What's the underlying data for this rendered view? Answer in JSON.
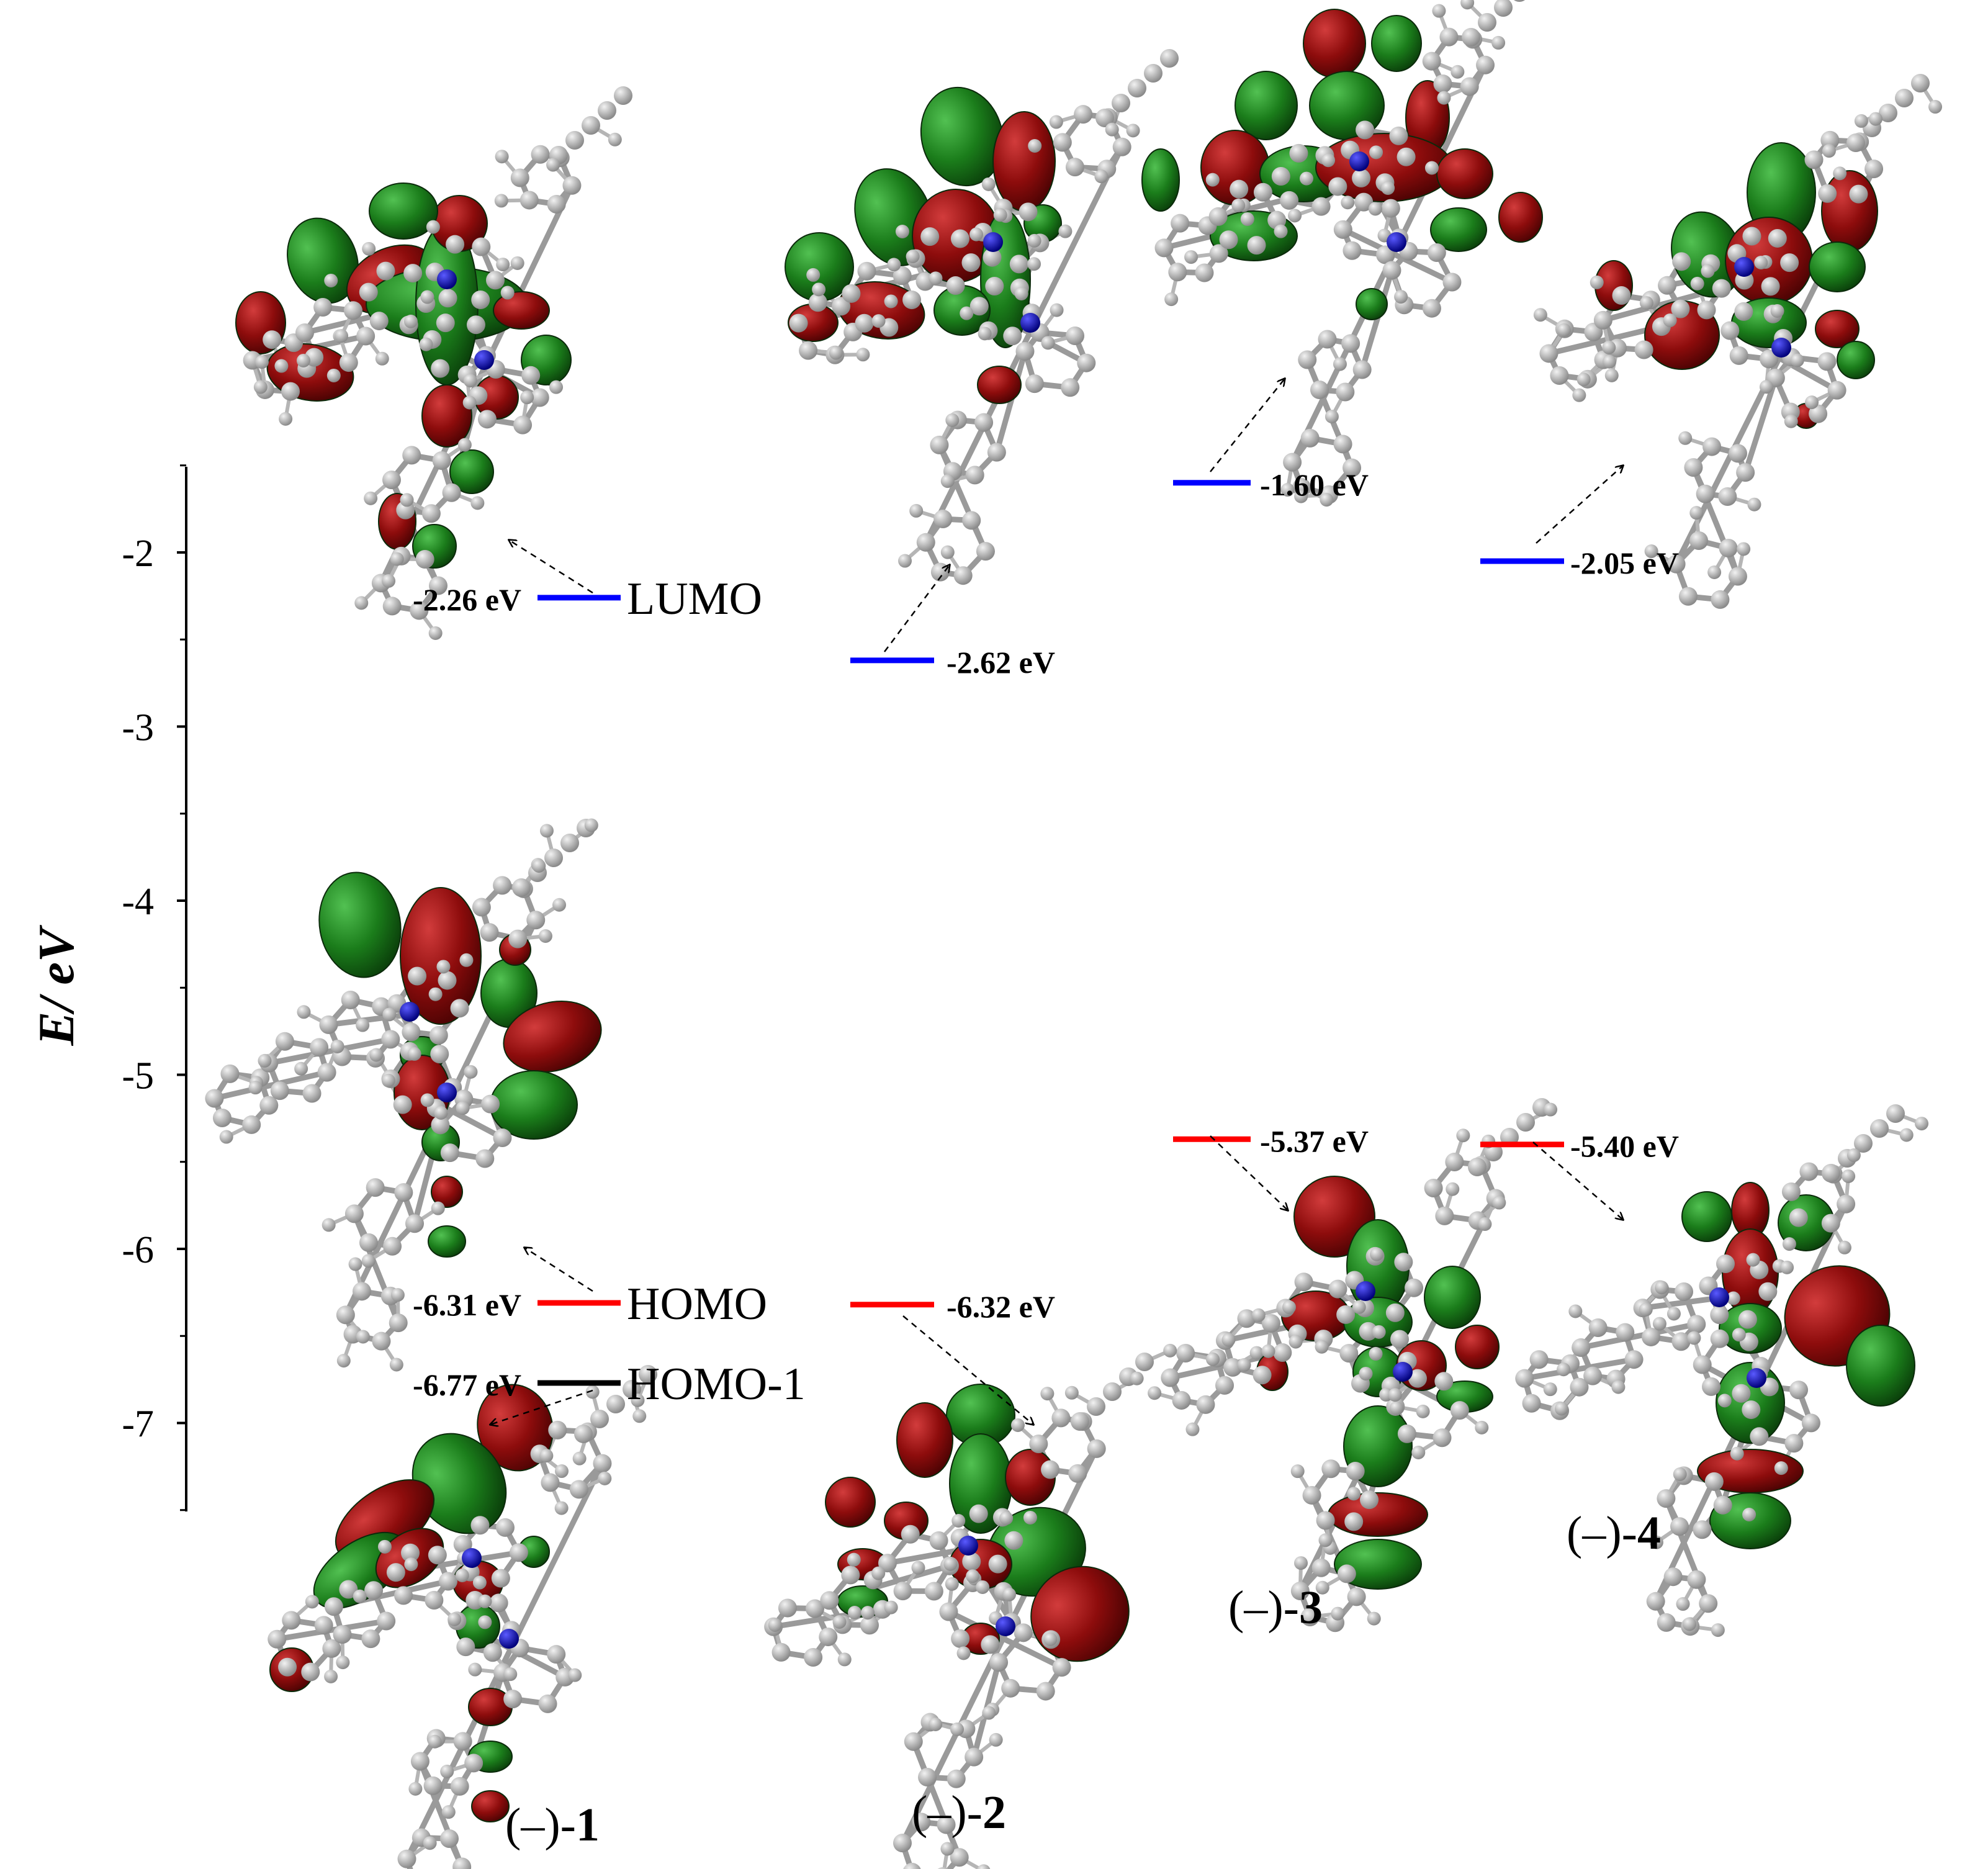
{
  "axis": {
    "label": "E/ eV",
    "ticks": [
      -2,
      -3,
      -4,
      -5,
      -6,
      -7
    ],
    "range": [
      -7.5,
      -1.5
    ]
  },
  "colors": {
    "lumo": "#0000ff",
    "homo": "#ff0000",
    "homo_minus_1": "#000000",
    "lobe_green": "#1a7a1a",
    "lobe_red": "#8b0a0a"
  },
  "level_names": {
    "lumo": "LUMO",
    "homo": "HOMO",
    "homo_minus_1": "HOMO-1"
  },
  "compounds": [
    {
      "name_prefix": "(–)-",
      "name_number": "1",
      "levels": [
        {
          "kind": "lumo",
          "value": -2.26,
          "label": "-2.26 eV"
        },
        {
          "kind": "homo",
          "value": -6.31,
          "label": "-6.31 eV"
        },
        {
          "kind": "homo_minus_1",
          "value": -6.77,
          "label": "-6.77 eV"
        }
      ]
    },
    {
      "name_prefix": "(–)-",
      "name_number": "2",
      "levels": [
        {
          "kind": "lumo",
          "value": -2.62,
          "label": "-2.62 eV"
        },
        {
          "kind": "homo",
          "value": -6.32,
          "label": "-6.32 eV"
        }
      ]
    },
    {
      "name_prefix": "(–)-",
      "name_number": "3",
      "levels": [
        {
          "kind": "lumo",
          "value": -1.6,
          "label": "-1.60 eV"
        },
        {
          "kind": "homo",
          "value": -5.37,
          "label": "-5.37 eV"
        }
      ]
    },
    {
      "name_prefix": "(–)-",
      "name_number": "4",
      "levels": [
        {
          "kind": "lumo",
          "value": -2.05,
          "label": "-2.05 eV"
        },
        {
          "kind": "homo",
          "value": -5.4,
          "label": "-5.40 eV"
        }
      ]
    }
  ]
}
